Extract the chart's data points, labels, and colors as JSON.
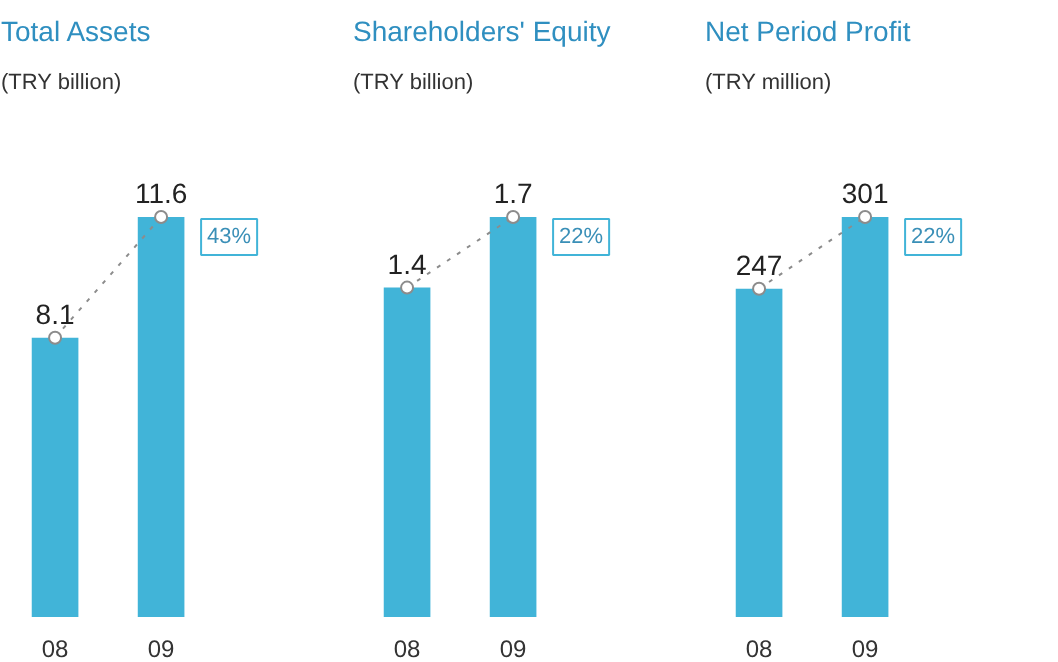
{
  "chart_data": [
    {
      "type": "bar",
      "title": "Total Assets",
      "subtitle": "(TRY billion)",
      "categories": [
        "08",
        "09"
      ],
      "series": [
        {
          "type": "bar",
          "color": "#41b4d8",
          "values": [
            8.1,
            11.6
          ],
          "value_labels": [
            "8.1",
            "11.6"
          ]
        },
        {
          "type": "line",
          "color": "#8c8c8c",
          "values": [
            8.1,
            11.6
          ],
          "marker": "circle",
          "line_style": "dotted"
        }
      ],
      "annotations": [
        {
          "text": "43%",
          "x": "09",
          "y": 11.6
        }
      ]
    },
    {
      "type": "bar",
      "title": "Shareholders' Equity",
      "subtitle": "(TRY billion)",
      "categories": [
        "08",
        "09"
      ],
      "series": [
        {
          "type": "bar",
          "color": "#41b4d8",
          "values": [
            1.4,
            1.7
          ],
          "value_labels": [
            "1.4",
            "1.7"
          ]
        },
        {
          "type": "line",
          "color": "#8c8c8c",
          "values": [
            1.4,
            1.7
          ],
          "marker": "circle",
          "line_style": "dotted"
        }
      ],
      "annotations": [
        {
          "text": "22%",
          "x": "09",
          "y": 1.7
        }
      ]
    },
    {
      "type": "bar",
      "title": "Net Period Profit",
      "subtitle": "(TRY million)",
      "categories": [
        "08",
        "09"
      ],
      "series": [
        {
          "type": "bar",
          "color": "#41b4d8",
          "values": [
            247,
            301
          ],
          "value_labels": [
            "247",
            "301"
          ]
        },
        {
          "type": "line",
          "color": "#8c8c8c",
          "values": [
            247,
            301
          ],
          "marker": "circle",
          "line_style": "dotted"
        }
      ],
      "annotations": [
        {
          "text": "22%",
          "x": "09",
          "y": 301
        }
      ]
    }
  ]
}
